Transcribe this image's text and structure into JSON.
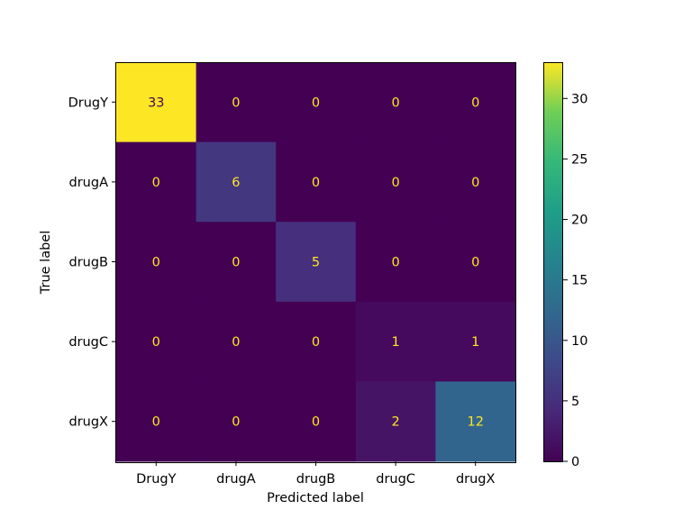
{
  "chart_data": {
    "type": "heatmap",
    "title": "",
    "xlabel": "Predicted label",
    "ylabel": "True label",
    "x_categories": [
      "DrugY",
      "drugA",
      "drugB",
      "drugC",
      "drugX"
    ],
    "y_categories": [
      "DrugY",
      "drugA",
      "drugB",
      "drugC",
      "drugX"
    ],
    "matrix": [
      [
        33,
        0,
        0,
        0,
        0
      ],
      [
        0,
        6,
        0,
        0,
        0
      ],
      [
        0,
        0,
        5,
        0,
        0
      ],
      [
        0,
        0,
        0,
        1,
        1
      ],
      [
        0,
        0,
        0,
        2,
        12
      ]
    ],
    "colormap": "viridis",
    "vmin": 0,
    "vmax": 33,
    "colorbar_ticks": [
      0,
      5,
      10,
      15,
      20,
      25,
      30
    ],
    "grid": false,
    "text_colors": {
      "low": "#fde725",
      "high": "#440154"
    }
  }
}
